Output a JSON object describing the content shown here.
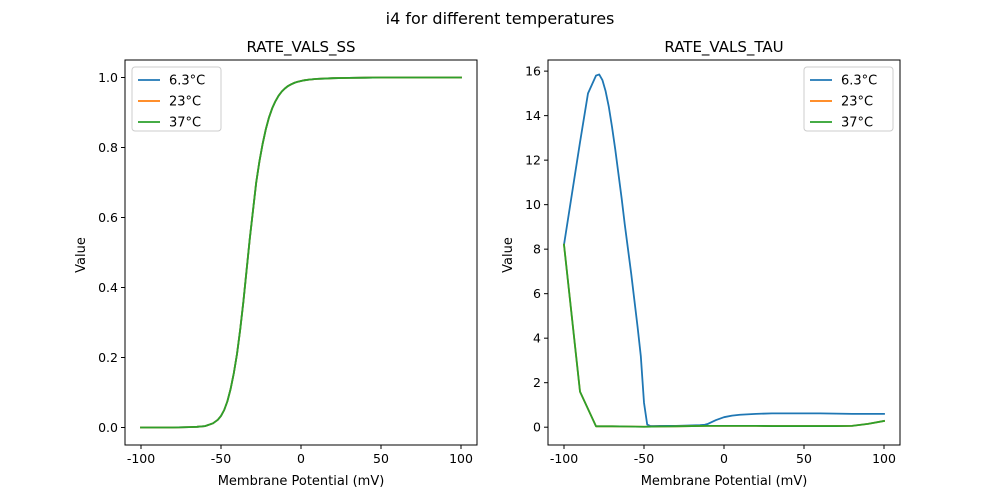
{
  "figure": {
    "title": "i4 for different temperatures"
  },
  "colors": {
    "6.3°C": "#1f77b4",
    "23°C": "#ff7f0e",
    "37°C": "#2ca02c"
  },
  "chart_data": [
    {
      "type": "line",
      "title": "RATE_VALS_SS",
      "xlabel": "Membrane Potential (mV)",
      "ylabel": "Value",
      "xlim": [
        -110,
        110
      ],
      "ylim": [
        -0.05,
        1.05
      ],
      "xticks": [
        -100,
        -50,
        0,
        50,
        100
      ],
      "yticks": [
        0.0,
        0.2,
        0.4,
        0.6,
        0.8,
        1.0
      ],
      "ytick_labels": [
        "0.0",
        "0.2",
        "0.4",
        "0.6",
        "0.8",
        "1.0"
      ],
      "legend": "upper left",
      "grid": false,
      "series": [
        {
          "name": "6.3°C",
          "x": [
            -100,
            -80,
            -70,
            -65,
            -60,
            -55,
            -52,
            -50,
            -48,
            -46,
            -44,
            -42,
            -40,
            -38,
            -36,
            -34,
            -32,
            -30,
            -28,
            -26,
            -24,
            -22,
            -20,
            -18,
            -16,
            -14,
            -12,
            -10,
            -8,
            -6,
            -4,
            -2,
            0,
            2,
            5,
            10,
            15,
            20,
            30,
            40,
            50,
            60,
            70,
            80,
            90,
            100
          ],
          "y": [
            0,
            0,
            0.001,
            0.002,
            0.004,
            0.012,
            0.022,
            0.033,
            0.05,
            0.075,
            0.11,
            0.155,
            0.21,
            0.28,
            0.36,
            0.45,
            0.54,
            0.62,
            0.7,
            0.76,
            0.81,
            0.852,
            0.886,
            0.912,
            0.932,
            0.948,
            0.96,
            0.969,
            0.976,
            0.981,
            0.985,
            0.988,
            0.99,
            0.992,
            0.994,
            0.996,
            0.997,
            0.998,
            0.999,
            0.9995,
            1,
            1,
            1,
            1,
            1,
            1
          ]
        },
        {
          "name": "23°C",
          "x": [
            -100,
            -80,
            -70,
            -65,
            -60,
            -55,
            -52,
            -50,
            -48,
            -46,
            -44,
            -42,
            -40,
            -38,
            -36,
            -34,
            -32,
            -30,
            -28,
            -26,
            -24,
            -22,
            -20,
            -18,
            -16,
            -14,
            -12,
            -10,
            -8,
            -6,
            -4,
            -2,
            0,
            2,
            5,
            10,
            15,
            20,
            30,
            40,
            50,
            60,
            70,
            80,
            90,
            100
          ],
          "y": [
            0,
            0,
            0.001,
            0.002,
            0.004,
            0.012,
            0.022,
            0.033,
            0.05,
            0.075,
            0.11,
            0.155,
            0.21,
            0.28,
            0.36,
            0.45,
            0.54,
            0.62,
            0.7,
            0.76,
            0.81,
            0.852,
            0.886,
            0.912,
            0.932,
            0.948,
            0.96,
            0.969,
            0.976,
            0.981,
            0.985,
            0.988,
            0.99,
            0.992,
            0.994,
            0.996,
            0.997,
            0.998,
            0.999,
            0.9995,
            1,
            1,
            1,
            1,
            1,
            1
          ]
        },
        {
          "name": "37°C",
          "x": [
            -100,
            -80,
            -70,
            -65,
            -60,
            -55,
            -52,
            -50,
            -48,
            -46,
            -44,
            -42,
            -40,
            -38,
            -36,
            -34,
            -32,
            -30,
            -28,
            -26,
            -24,
            -22,
            -20,
            -18,
            -16,
            -14,
            -12,
            -10,
            -8,
            -6,
            -4,
            -2,
            0,
            2,
            5,
            10,
            15,
            20,
            30,
            40,
            50,
            60,
            70,
            80,
            90,
            100
          ],
          "y": [
            0,
            0,
            0.001,
            0.002,
            0.004,
            0.012,
            0.022,
            0.033,
            0.05,
            0.075,
            0.11,
            0.155,
            0.21,
            0.28,
            0.36,
            0.45,
            0.54,
            0.62,
            0.7,
            0.76,
            0.81,
            0.852,
            0.886,
            0.912,
            0.932,
            0.948,
            0.96,
            0.969,
            0.976,
            0.981,
            0.985,
            0.988,
            0.99,
            0.992,
            0.994,
            0.996,
            0.997,
            0.998,
            0.999,
            0.9995,
            1,
            1,
            1,
            1,
            1,
            1
          ]
        }
      ]
    },
    {
      "type": "line",
      "title": "RATE_VALS_TAU",
      "xlabel": "Membrane Potential (mV)",
      "ylabel": "Value",
      "xlim": [
        -110,
        110
      ],
      "ylim": [
        -0.8,
        16.5
      ],
      "xticks": [
        -100,
        -50,
        0,
        50,
        100
      ],
      "yticks": [
        0,
        2,
        4,
        6,
        8,
        10,
        12,
        14,
        16
      ],
      "ytick_labels": [
        "0",
        "2",
        "4",
        "6",
        "8",
        "10",
        "12",
        "14",
        "16"
      ],
      "legend": "upper right",
      "grid": false,
      "series": [
        {
          "name": "6.3°C",
          "x": [
            -100,
            -95,
            -90,
            -85,
            -80,
            -78,
            -76,
            -74,
            -72,
            -70,
            -68,
            -66,
            -64,
            -62,
            -60,
            -58,
            -56,
            -54,
            -52,
            -50,
            -48,
            -46,
            -44,
            -40,
            -30,
            -20,
            -15,
            -12,
            -10,
            -8,
            -5,
            0,
            5,
            10,
            20,
            30,
            40,
            50,
            60,
            70,
            80,
            90,
            100
          ],
          "y": [
            8.2,
            10.5,
            12.8,
            15.0,
            15.8,
            15.85,
            15.6,
            15.1,
            14.4,
            13.5,
            12.5,
            11.4,
            10.3,
            9.1,
            8.0,
            6.9,
            5.7,
            4.5,
            3.2,
            1.1,
            0.12,
            0.05,
            0.05,
            0.06,
            0.06,
            0.08,
            0.09,
            0.11,
            0.15,
            0.22,
            0.32,
            0.45,
            0.52,
            0.56,
            0.6,
            0.62,
            0.62,
            0.62,
            0.62,
            0.61,
            0.6,
            0.6,
            0.6
          ]
        },
        {
          "name": "23°C",
          "x": [
            -100,
            -90,
            -80,
            -70,
            -60,
            -50,
            -40,
            -30,
            -20,
            -10,
            0,
            10,
            20,
            30,
            40,
            50,
            60,
            70,
            80,
            90,
            100
          ],
          "y": [
            8.2,
            1.6,
            0.04,
            0.04,
            0.03,
            0.02,
            0.03,
            0.04,
            0.05,
            0.06,
            0.06,
            0.06,
            0.06,
            0.05,
            0.05,
            0.05,
            0.05,
            0.05,
            0.06,
            0.15,
            0.28
          ]
        },
        {
          "name": "37°C",
          "x": [
            -100,
            -90,
            -80,
            -70,
            -60,
            -50,
            -40,
            -30,
            -20,
            -10,
            0,
            10,
            20,
            30,
            40,
            50,
            60,
            70,
            80,
            90,
            100
          ],
          "y": [
            8.2,
            1.6,
            0.04,
            0.04,
            0.03,
            0.02,
            0.03,
            0.04,
            0.05,
            0.06,
            0.06,
            0.06,
            0.06,
            0.05,
            0.05,
            0.05,
            0.05,
            0.05,
            0.06,
            0.15,
            0.28
          ]
        }
      ]
    }
  ]
}
